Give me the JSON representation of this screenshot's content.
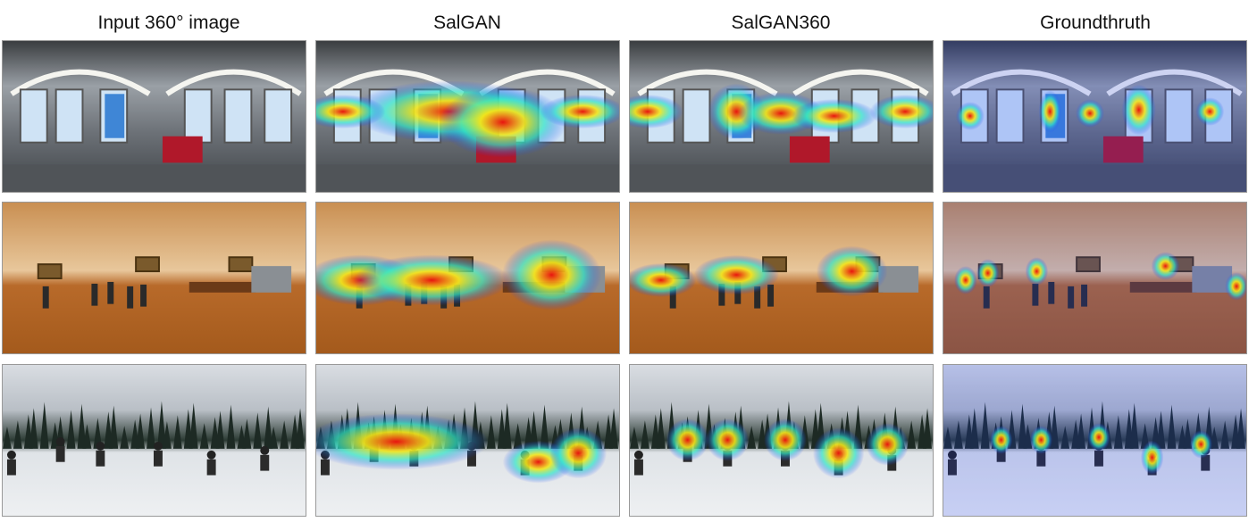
{
  "columns": [
    {
      "title": "Input 360° image"
    },
    {
      "title": "SalGAN"
    },
    {
      "title": "SalGAN360"
    },
    {
      "title": "Groundthruth"
    }
  ],
  "rows": [
    {
      "scene": "train-interior"
    },
    {
      "scene": "hall-room"
    },
    {
      "scene": "snow-field"
    }
  ],
  "colors": {
    "heat_low": "#1e3cff",
    "heat_mid": "#2ee6c8",
    "heat_warm": "#f2e61a",
    "heat_hot": "#e8140f"
  }
}
